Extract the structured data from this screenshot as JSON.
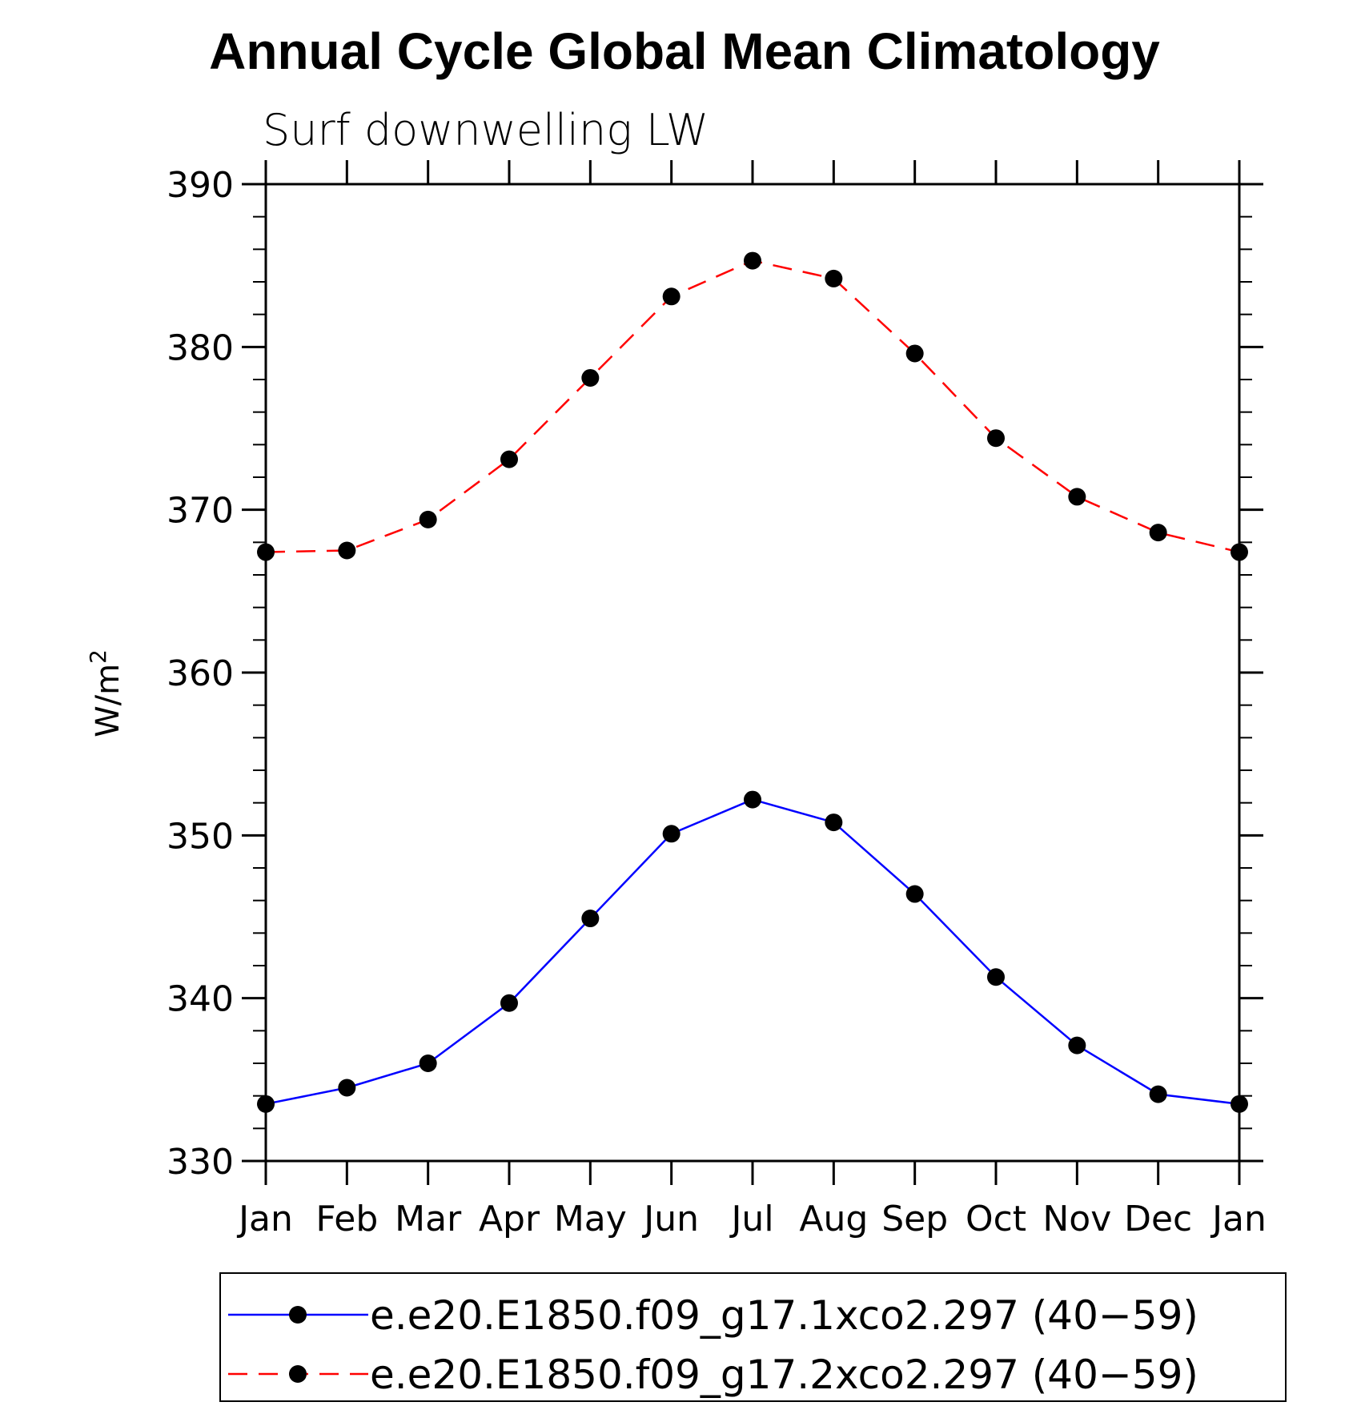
{
  "chart_data": {
    "type": "line",
    "title": "Annual Cycle Global Mean Climatology",
    "subtitle": "Surf downwelling LW",
    "xlabel": "",
    "ylabel": "W/m",
    "ylabel_superscript": "2",
    "categories": [
      "Jan",
      "Feb",
      "Mar",
      "Apr",
      "May",
      "Jun",
      "Jul",
      "Aug",
      "Sep",
      "Oct",
      "Nov",
      "Dec",
      "Jan"
    ],
    "ylim": [
      330,
      390
    ],
    "yticks": [
      330,
      340,
      350,
      360,
      370,
      380,
      390
    ],
    "series": [
      {
        "name": "e.e20.E1850.f09_g17.1xco2.297 (40−59)",
        "color": "#0000ff",
        "dash": "solid",
        "marker": "filled-circle",
        "values": [
          333.5,
          334.5,
          336.0,
          339.7,
          344.9,
          350.1,
          352.2,
          350.8,
          346.4,
          341.3,
          337.1,
          334.1,
          333.5
        ]
      },
      {
        "name": "e.e20.E1850.f09_g17.2xco2.297 (40−59)",
        "color": "#ff0000",
        "dash": "dashed",
        "marker": "filled-circle",
        "values": [
          367.4,
          367.5,
          369.4,
          373.1,
          378.1,
          383.1,
          385.3,
          384.2,
          379.6,
          374.4,
          370.8,
          368.6,
          367.4
        ]
      }
    ],
    "grid": false,
    "legend_placement": "bottom"
  }
}
